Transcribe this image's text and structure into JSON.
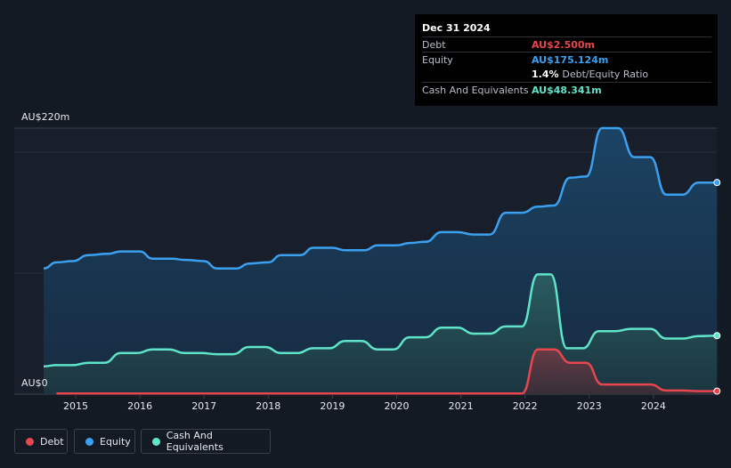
{
  "tooltip": {
    "date": "Dec 31 2024",
    "rows": [
      {
        "label": "Debt",
        "value": "AU$2.500m",
        "color": "#e8464f"
      },
      {
        "label": "Equity",
        "value": "AU$175.124m",
        "color": "#3ba0f0"
      },
      {
        "label": "",
        "value": "1.4%",
        "extra": "Debt/Equity Ratio",
        "color": "#ffffff"
      },
      {
        "label": "Cash And Equivalents",
        "value": "AU$48.341m",
        "color": "#5fe3c9"
      }
    ]
  },
  "y_top_label": "AU$220m",
  "y_bottom_label": "AU$0",
  "legend": [
    {
      "label": "Debt",
      "color": "#e8464f"
    },
    {
      "label": "Equity",
      "color": "#3ba0f0"
    },
    {
      "label": "Cash And Equivalents",
      "color": "#5fe3c9"
    }
  ],
  "chart_data": {
    "type": "area",
    "x_ticks": [
      "2015",
      "2016",
      "2017",
      "2018",
      "2019",
      "2020",
      "2021",
      "2022",
      "2023",
      "2024"
    ],
    "ylim": [
      0,
      220
    ],
    "y_unit": "AU$m",
    "series": [
      {
        "name": "Equity",
        "color": "#3ba0f0",
        "points": [
          [
            2014.5,
            104
          ],
          [
            2014.7,
            109
          ],
          [
            2014.95,
            110
          ],
          [
            2015.2,
            115
          ],
          [
            2015.5,
            116
          ],
          [
            2015.7,
            118
          ],
          [
            2016.0,
            118
          ],
          [
            2016.2,
            112
          ],
          [
            2016.5,
            112
          ],
          [
            2016.7,
            111
          ],
          [
            2017.0,
            110
          ],
          [
            2017.2,
            104
          ],
          [
            2017.5,
            104
          ],
          [
            2017.7,
            108
          ],
          [
            2018.0,
            109
          ],
          [
            2018.2,
            115
          ],
          [
            2018.5,
            115
          ],
          [
            2018.7,
            121
          ],
          [
            2019.0,
            121
          ],
          [
            2019.2,
            119
          ],
          [
            2019.5,
            119
          ],
          [
            2019.7,
            123
          ],
          [
            2020.0,
            123
          ],
          [
            2020.2,
            125
          ],
          [
            2020.45,
            126
          ],
          [
            2020.7,
            134
          ],
          [
            2020.95,
            134
          ],
          [
            2021.2,
            132
          ],
          [
            2021.45,
            132
          ],
          [
            2021.7,
            150
          ],
          [
            2021.95,
            150
          ],
          [
            2022.2,
            155
          ],
          [
            2022.45,
            156
          ],
          [
            2022.7,
            179
          ],
          [
            2022.95,
            180
          ],
          [
            2023.2,
            220
          ],
          [
            2023.45,
            220
          ],
          [
            2023.7,
            196
          ],
          [
            2023.95,
            196
          ],
          [
            2024.2,
            165
          ],
          [
            2024.45,
            165
          ],
          [
            2024.7,
            175
          ],
          [
            2024.99,
            175
          ]
        ]
      },
      {
        "name": "Cash And Equivalents",
        "color": "#5fe3c9",
        "points": [
          [
            2014.5,
            23
          ],
          [
            2014.7,
            24
          ],
          [
            2014.95,
            24
          ],
          [
            2015.2,
            26
          ],
          [
            2015.45,
            26
          ],
          [
            2015.7,
            34
          ],
          [
            2015.95,
            34
          ],
          [
            2016.2,
            37
          ],
          [
            2016.45,
            37
          ],
          [
            2016.7,
            34
          ],
          [
            2016.95,
            34
          ],
          [
            2017.2,
            33
          ],
          [
            2017.45,
            33
          ],
          [
            2017.7,
            39
          ],
          [
            2017.95,
            39
          ],
          [
            2018.2,
            34
          ],
          [
            2018.45,
            34
          ],
          [
            2018.7,
            38
          ],
          [
            2018.95,
            38
          ],
          [
            2019.2,
            44
          ],
          [
            2019.45,
            44
          ],
          [
            2019.7,
            37
          ],
          [
            2019.95,
            37
          ],
          [
            2020.2,
            47
          ],
          [
            2020.45,
            47
          ],
          [
            2020.7,
            55
          ],
          [
            2020.95,
            55
          ],
          [
            2021.2,
            50
          ],
          [
            2021.45,
            50
          ],
          [
            2021.7,
            56
          ],
          [
            2021.95,
            56
          ],
          [
            2022.2,
            99
          ],
          [
            2022.4,
            99
          ],
          [
            2022.65,
            38
          ],
          [
            2022.9,
            38
          ],
          [
            2023.15,
            52
          ],
          [
            2023.4,
            52
          ],
          [
            2023.65,
            54
          ],
          [
            2023.95,
            54
          ],
          [
            2024.2,
            46
          ],
          [
            2024.45,
            46
          ],
          [
            2024.7,
            48
          ],
          [
            2024.99,
            48.341
          ]
        ]
      },
      {
        "name": "Debt",
        "color": "#e8464f",
        "points": [
          [
            2014.7,
            0.5
          ],
          [
            2015.0,
            0.5
          ],
          [
            2021.95,
            0.5
          ],
          [
            2022.2,
            37
          ],
          [
            2022.45,
            37
          ],
          [
            2022.7,
            26
          ],
          [
            2022.95,
            26
          ],
          [
            2023.2,
            8
          ],
          [
            2023.45,
            8
          ],
          [
            2023.7,
            8
          ],
          [
            2023.95,
            8
          ],
          [
            2024.2,
            3
          ],
          [
            2024.45,
            3
          ],
          [
            2024.7,
            2.5
          ],
          [
            2024.99,
            2.5
          ]
        ]
      }
    ]
  }
}
